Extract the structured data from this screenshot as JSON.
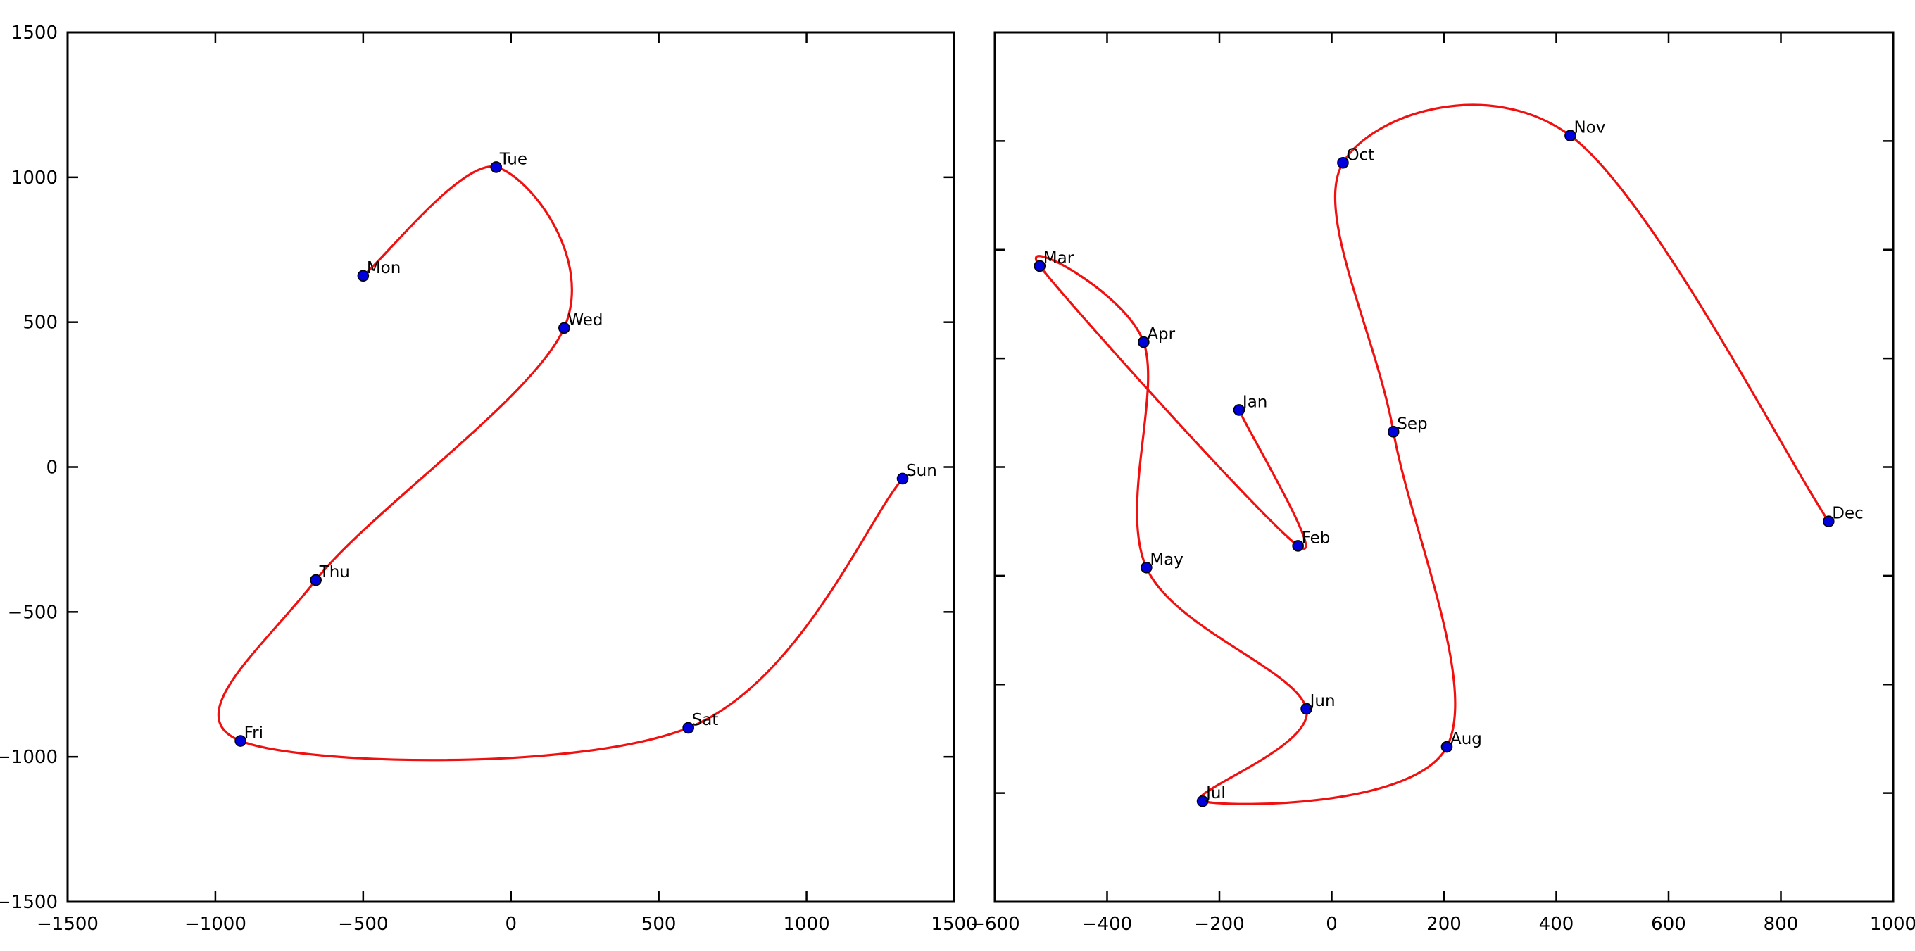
{
  "figure": {
    "background": "#ffffff",
    "frame_color": "#000000",
    "text_color": "#000000"
  },
  "chart_data": [
    {
      "type": "line",
      "id": "weekdays-spline",
      "title": "",
      "xlabel": "",
      "ylabel": "",
      "xlim": [
        -1500,
        1500
      ],
      "ylim": [
        -1500,
        1500
      ],
      "grid": false,
      "legend": "none",
      "xticks": [
        -1500,
        -1000,
        -500,
        0,
        500,
        1000,
        1500
      ],
      "xtick_labels": [
        "−1500",
        "−1000",
        "−500",
        "0",
        "500",
        "1000",
        "1500"
      ],
      "yticks": [
        -1500,
        -1000,
        -500,
        0,
        500,
        1000,
        1500
      ],
      "ytick_labels": [
        "−1500",
        "−1000",
        "−500",
        "0",
        "500",
        "1000",
        "1500"
      ],
      "show_ytick_labels": true,
      "show_xtick_labels": true,
      "line_color": "#f01010",
      "marker_color": "#0000dd",
      "marker_edge_color": "#000000",
      "series": [
        {
          "name": "weekdays",
          "points": [
            {
              "label": "Mon",
              "x": -500,
              "y": 660
            },
            {
              "label": "Tue",
              "x": -50,
              "y": 1035
            },
            {
              "label": "Wed",
              "x": 180,
              "y": 480
            },
            {
              "label": "Thu",
              "x": -660,
              "y": -390
            },
            {
              "label": "Fri",
              "x": -915,
              "y": -945
            },
            {
              "label": "Sat",
              "x": 600,
              "y": -900
            },
            {
              "label": "Sun",
              "x": 1325,
              "y": -40
            }
          ]
        }
      ]
    },
    {
      "type": "line",
      "id": "months-spline",
      "title": "",
      "xlabel": "",
      "ylabel": "",
      "xlim": [
        -600,
        1000
      ],
      "ylim": [
        -800,
        800
      ],
      "grid": false,
      "legend": "none",
      "xticks": [
        -600,
        -400,
        -200,
        0,
        200,
        400,
        600,
        800,
        1000
      ],
      "xtick_labels": [
        "−600",
        "−400",
        "−200",
        "0",
        "200",
        "400",
        "600",
        "800",
        "1000"
      ],
      "yticks": [
        -800,
        -600,
        -400,
        -200,
        0,
        200,
        400,
        600,
        800
      ],
      "ytick_labels": [],
      "show_ytick_labels": false,
      "show_xtick_labels": true,
      "line_color": "#f01010",
      "marker_color": "#0000dd",
      "marker_edge_color": "#000000",
      "series": [
        {
          "name": "months",
          "points": [
            {
              "label": "Jan",
              "x": -165,
              "y": 105
            },
            {
              "label": "Feb",
              "x": -60,
              "y": -145
            },
            {
              "label": "Mar",
              "x": -520,
              "y": 370
            },
            {
              "label": "Apr",
              "x": -335,
              "y": 230
            },
            {
              "label": "May",
              "x": -330,
              "y": -185
            },
            {
              "label": "Jun",
              "x": -45,
              "y": -445
            },
            {
              "label": "Jul",
              "x": -230,
              "y": -615
            },
            {
              "label": "Aug",
              "x": 205,
              "y": -515
            },
            {
              "label": "Sep",
              "x": 110,
              "y": 65
            },
            {
              "label": "Oct",
              "x": 20,
              "y": 560
            },
            {
              "label": "Nov",
              "x": 425,
              "y": 610
            },
            {
              "label": "Dec",
              "x": 885,
              "y": -100
            }
          ]
        }
      ]
    }
  ]
}
